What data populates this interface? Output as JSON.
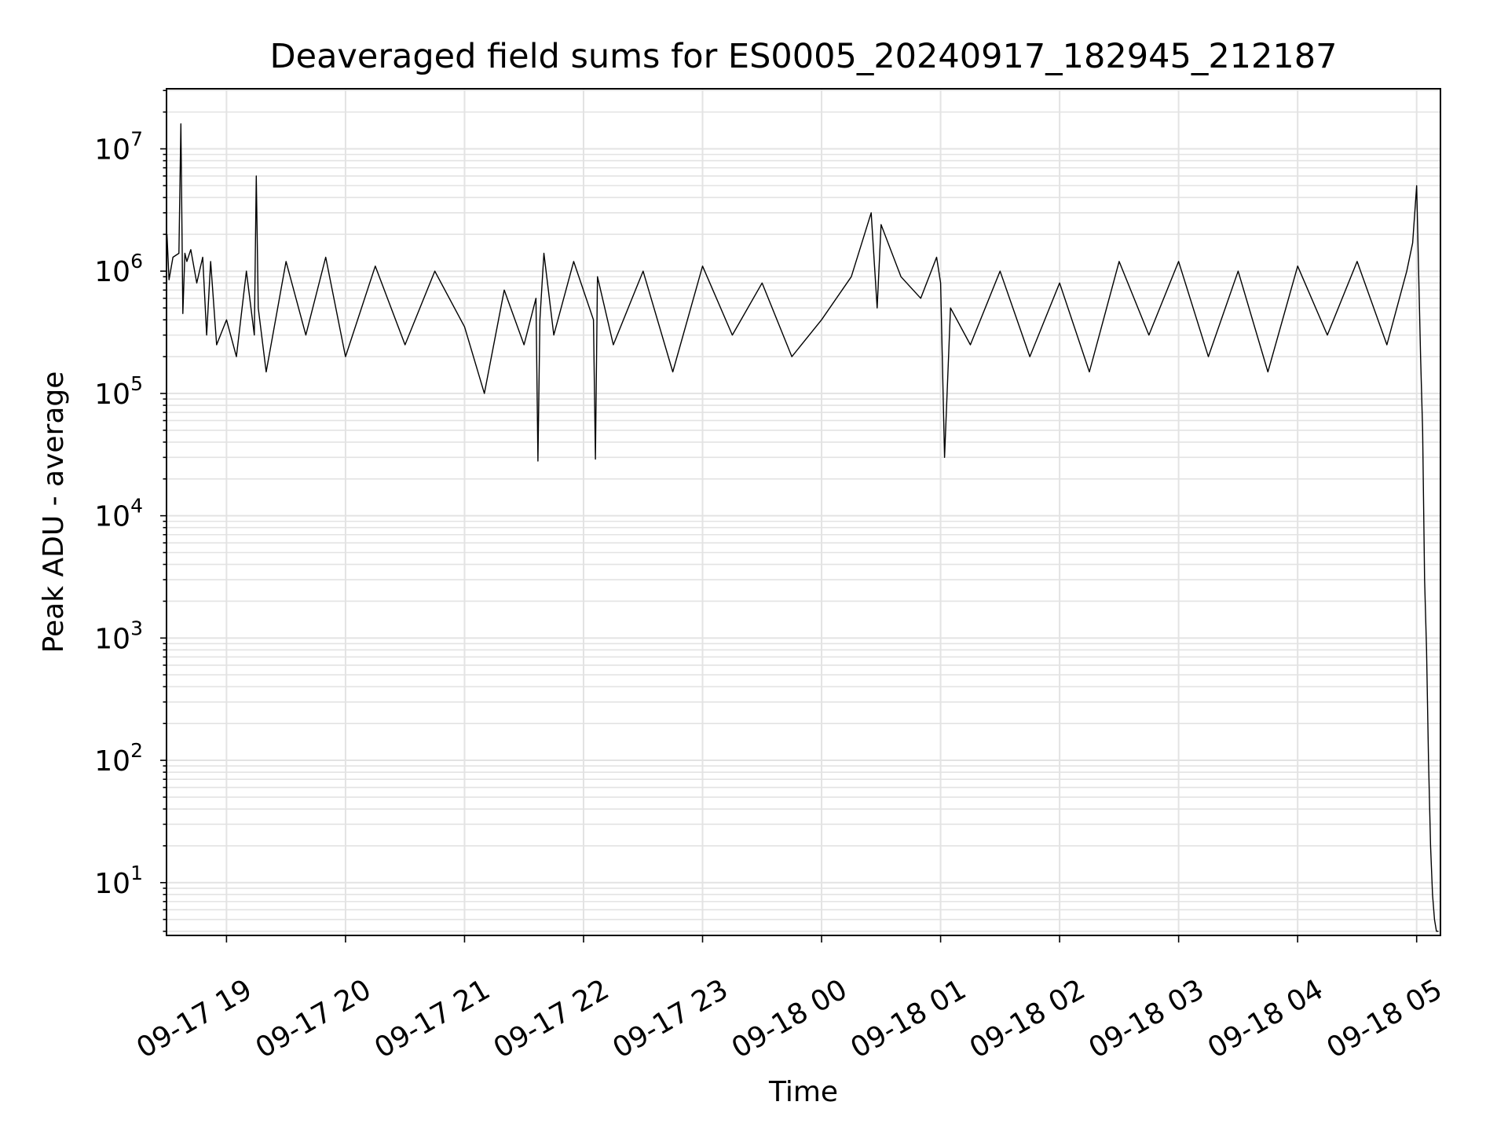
{
  "chart_data": {
    "type": "line",
    "title": "Deaveraged field sums for ES0005_20240917_182945_212187",
    "xlabel": "Time",
    "ylabel": "Peak ADU - average",
    "yscale": "log",
    "ylim": [
      3.7,
      31000000
    ],
    "xlim": [
      "2024-09-17 18:29:45",
      "2024-09-18 05:12:00"
    ],
    "grid": true,
    "line_color": "#000000",
    "x_ticks": [
      "09-17 19",
      "09-17 20",
      "09-17 21",
      "09-17 22",
      "09-17 23",
      "09-18 00",
      "09-18 01",
      "09-18 02",
      "09-18 03",
      "09-18 04",
      "09-18 05"
    ],
    "y_ticks": [
      {
        "base": "10",
        "exp": "1"
      },
      {
        "base": "10",
        "exp": "2"
      },
      {
        "base": "10",
        "exp": "3"
      },
      {
        "base": "10",
        "exp": "4"
      },
      {
        "base": "10",
        "exp": "5"
      },
      {
        "base": "10",
        "exp": "6"
      },
      {
        "base": "10",
        "exp": "7"
      }
    ],
    "series": [
      {
        "x": [
          "2024-09-17 18:30",
          "2024-09-17 18:31",
          "2024-09-17 18:33",
          "2024-09-17 18:36",
          "2024-09-17 18:37",
          "2024-09-17 18:38",
          "2024-09-17 18:39",
          "2024-09-17 18:40",
          "2024-09-17 18:42",
          "2024-09-17 18:45",
          "2024-09-17 18:48",
          "2024-09-17 18:50",
          "2024-09-17 18:52",
          "2024-09-17 18:55",
          "2024-09-17 19:00",
          "2024-09-17 19:05",
          "2024-09-17 19:10",
          "2024-09-17 19:14",
          "2024-09-17 19:15",
          "2024-09-17 19:16",
          "2024-09-17 19:20",
          "2024-09-17 19:30",
          "2024-09-17 19:40",
          "2024-09-17 19:50",
          "2024-09-17 20:00",
          "2024-09-17 20:15",
          "2024-09-17 20:30",
          "2024-09-17 20:45",
          "2024-09-17 21:00",
          "2024-09-17 21:10",
          "2024-09-17 21:20",
          "2024-09-17 21:30",
          "2024-09-17 21:36",
          "2024-09-17 21:37",
          "2024-09-17 21:38",
          "2024-09-17 21:40",
          "2024-09-17 21:45",
          "2024-09-17 21:55",
          "2024-09-17 22:05",
          "2024-09-17 22:06",
          "2024-09-17 22:07",
          "2024-09-17 22:15",
          "2024-09-17 22:30",
          "2024-09-17 22:45",
          "2024-09-17 23:00",
          "2024-09-17 23:15",
          "2024-09-17 23:30",
          "2024-09-17 23:45",
          "2024-09-18 00:00",
          "2024-09-18 00:15",
          "2024-09-18 00:25",
          "2024-09-18 00:28",
          "2024-09-18 00:30",
          "2024-09-18 00:40",
          "2024-09-18 00:50",
          "2024-09-18 00:58",
          "2024-09-18 01:00",
          "2024-09-18 01:02",
          "2024-09-18 01:05",
          "2024-09-18 01:15",
          "2024-09-18 01:30",
          "2024-09-18 01:45",
          "2024-09-18 02:00",
          "2024-09-18 02:15",
          "2024-09-18 02:30",
          "2024-09-18 02:45",
          "2024-09-18 03:00",
          "2024-09-18 03:15",
          "2024-09-18 03:30",
          "2024-09-18 03:45",
          "2024-09-18 04:00",
          "2024-09-18 04:15",
          "2024-09-18 04:30",
          "2024-09-18 04:45",
          "2024-09-18 04:55",
          "2024-09-18 04:58",
          "2024-09-18 05:00",
          "2024-09-18 05:01",
          "2024-09-18 05:02",
          "2024-09-18 05:03",
          "2024-09-18 05:04",
          "2024-09-18 05:05",
          "2024-09-18 05:06",
          "2024-09-18 05:07",
          "2024-09-18 05:08",
          "2024-09-18 05:09",
          "2024-09-18 05:10",
          "2024-09-18 05:11"
        ],
        "y": [
          2000000,
          850000,
          1300000,
          1400000,
          16000000,
          450000,
          1400000,
          1200000,
          1500000,
          800000,
          1300000,
          300000,
          1200000,
          250000,
          400000,
          200000,
          1000000,
          300000,
          6000000,
          500000,
          150000,
          1200000,
          300000,
          1300000,
          200000,
          1100000,
          250000,
          1000000,
          350000,
          100000,
          700000,
          250000,
          600000,
          28000,
          400000,
          1400000,
          300000,
          1200000,
          400000,
          29000,
          900000,
          250000,
          1000000,
          150000,
          1100000,
          300000,
          800000,
          200000,
          400000,
          900000,
          3000000,
          500000,
          2400000,
          900000,
          600000,
          1300000,
          800000,
          30000,
          500000,
          250000,
          1000000,
          200000,
          800000,
          150000,
          1200000,
          300000,
          1200000,
          200000,
          1000000,
          150000,
          1100000,
          300000,
          1200000,
          250000,
          1000000,
          1700000,
          5000000,
          1000000,
          200000,
          50000,
          3000,
          800,
          100,
          20,
          8,
          5,
          4,
          4
        ]
      }
    ]
  }
}
